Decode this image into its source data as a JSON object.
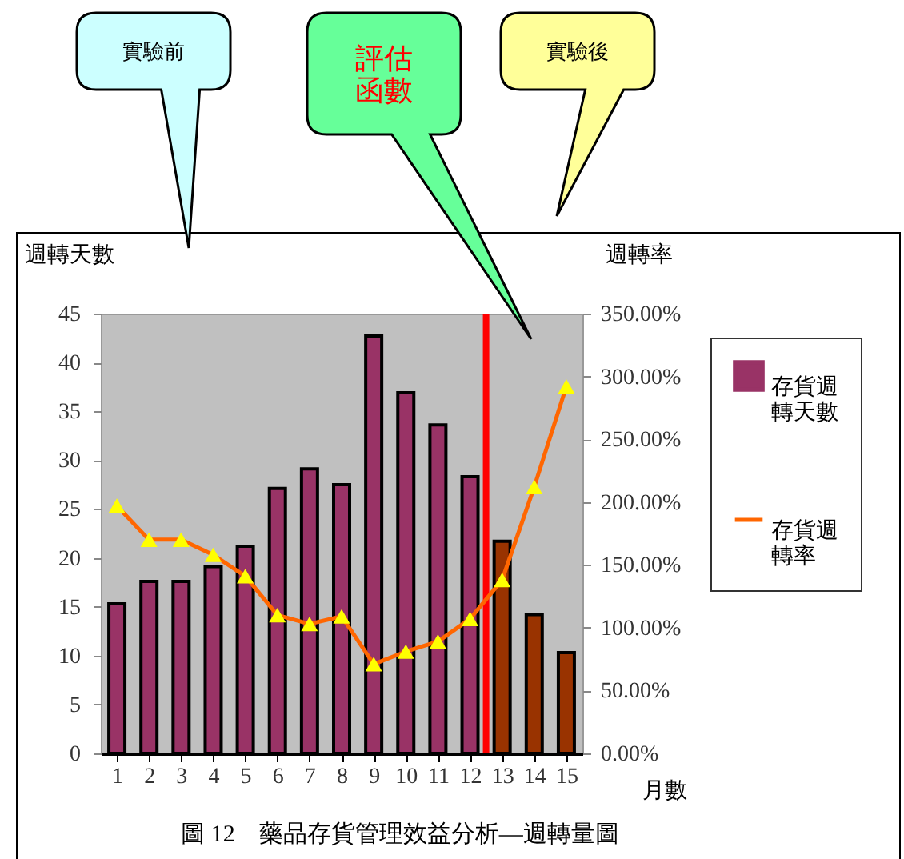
{
  "chart_data": {
    "type": "bar",
    "x": [
      1,
      2,
      3,
      4,
      5,
      6,
      7,
      8,
      9,
      10,
      11,
      12,
      13,
      14,
      15
    ],
    "xlim": [
      0.5,
      15.5
    ],
    "xticks": [
      1,
      2,
      3,
      4,
      5,
      6,
      7,
      8,
      9,
      10,
      11,
      12,
      13,
      14,
      15
    ],
    "xlabel": "月數",
    "ylabel": "週轉天數",
    "y2label": "週轉率",
    "series": [
      {
        "name": "存貨週轉天數",
        "type": "bar",
        "color": "#993366",
        "colors": [
          "#993366",
          "#993366",
          "#993366",
          "#993366",
          "#993366",
          "#993366",
          "#993366",
          "#993366",
          "#993366",
          "#993366",
          "#993366",
          "#993366",
          "#993300",
          "#993300",
          "#993300"
        ],
        "values": [
          15.3,
          17.6,
          17.6,
          19.1,
          21.2,
          27.1,
          29.1,
          27.5,
          42.7,
          36.9,
          33.6,
          28.3,
          21.7,
          14.2,
          10.3
        ]
      },
      {
        "name": "存貨週轉率",
        "type": "line",
        "axis": "y2",
        "color": "#ff6600",
        "marker": "triangle",
        "values": [
          197,
          170,
          170,
          158,
          141,
          110,
          103,
          109,
          71,
          81,
          89,
          107,
          138,
          212,
          292
        ]
      }
    ],
    "ylim": [
      0,
      45
    ],
    "yticks": [
      0,
      5,
      10,
      15,
      20,
      25,
      30,
      35,
      40,
      45
    ],
    "y2lim": [
      0,
      350
    ],
    "y2ticks": [
      {
        "value": 0,
        "label": "0.00%"
      },
      {
        "value": 50,
        "label": "50.00%"
      },
      {
        "value": 100,
        "label": "100.00%"
      },
      {
        "value": 150,
        "label": "150.00%"
      },
      {
        "value": 200,
        "label": "200.00%"
      },
      {
        "value": 250,
        "label": "250.00%"
      },
      {
        "value": 300,
        "label": "300.00%"
      },
      {
        "value": 350,
        "label": "350.00%"
      }
    ],
    "ref_lines": [
      {
        "axis": "x",
        "value": 12.5,
        "color": "#ff0000"
      }
    ],
    "grid": false,
    "legend": "right",
    "annotations": [
      "實驗前",
      "評估函數",
      "實驗後",
      "圖 12　藥品存貨管理效益分析—週轉量圖"
    ]
  }
}
